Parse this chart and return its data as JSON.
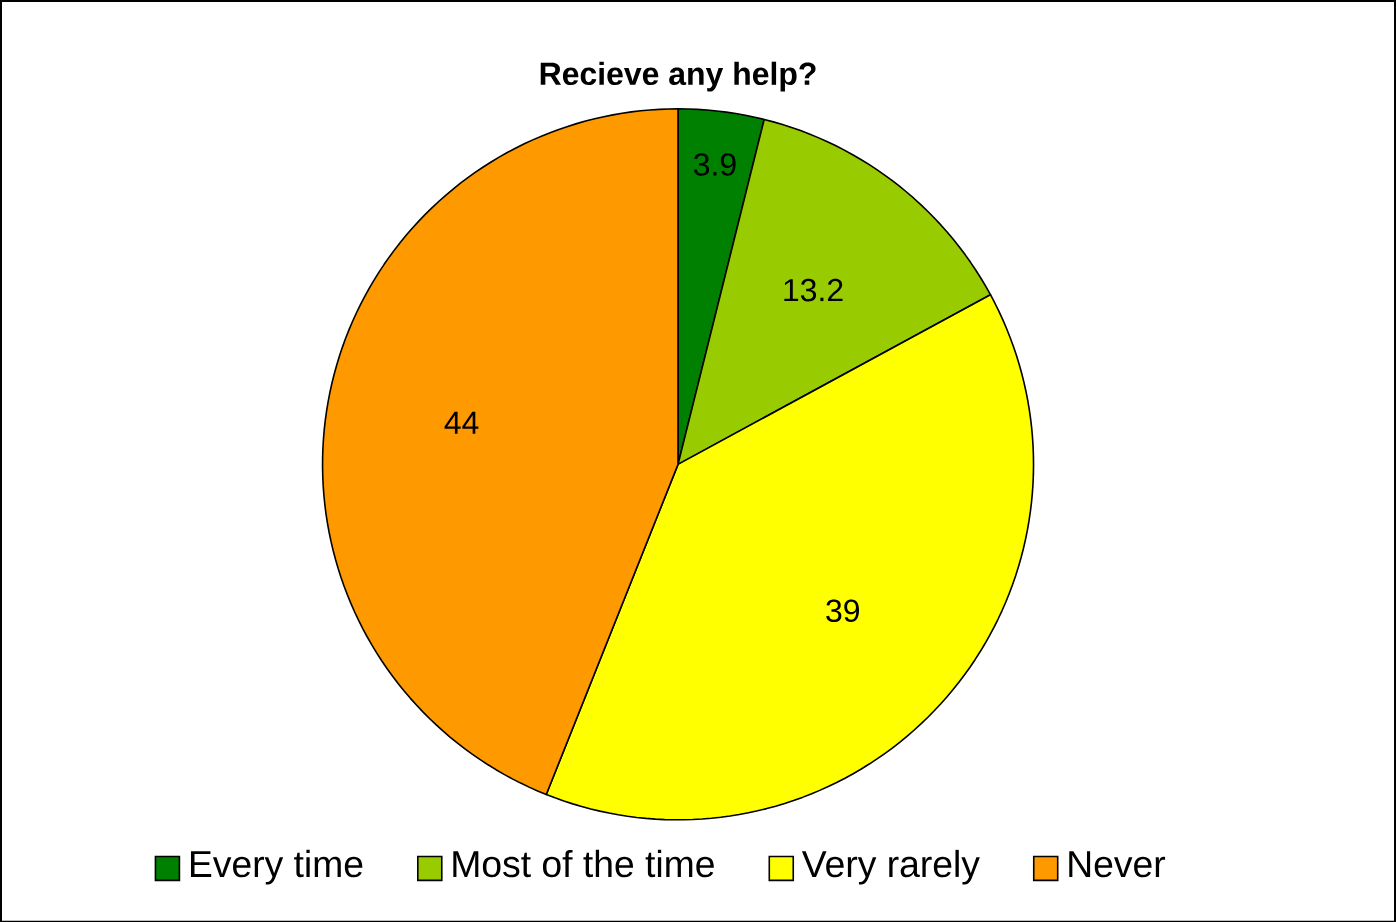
{
  "chart_data": {
    "type": "pie",
    "title": "Recieve any help?",
    "categories": [
      "Every time",
      "Most of the time",
      "Very rarely",
      "Never"
    ],
    "values": [
      3.9,
      13.2,
      39,
      44
    ],
    "colors": [
      "#008000",
      "#99cc00",
      "#ffff00",
      "#ff9900"
    ],
    "data_labels": true,
    "legend": "bottom"
  }
}
